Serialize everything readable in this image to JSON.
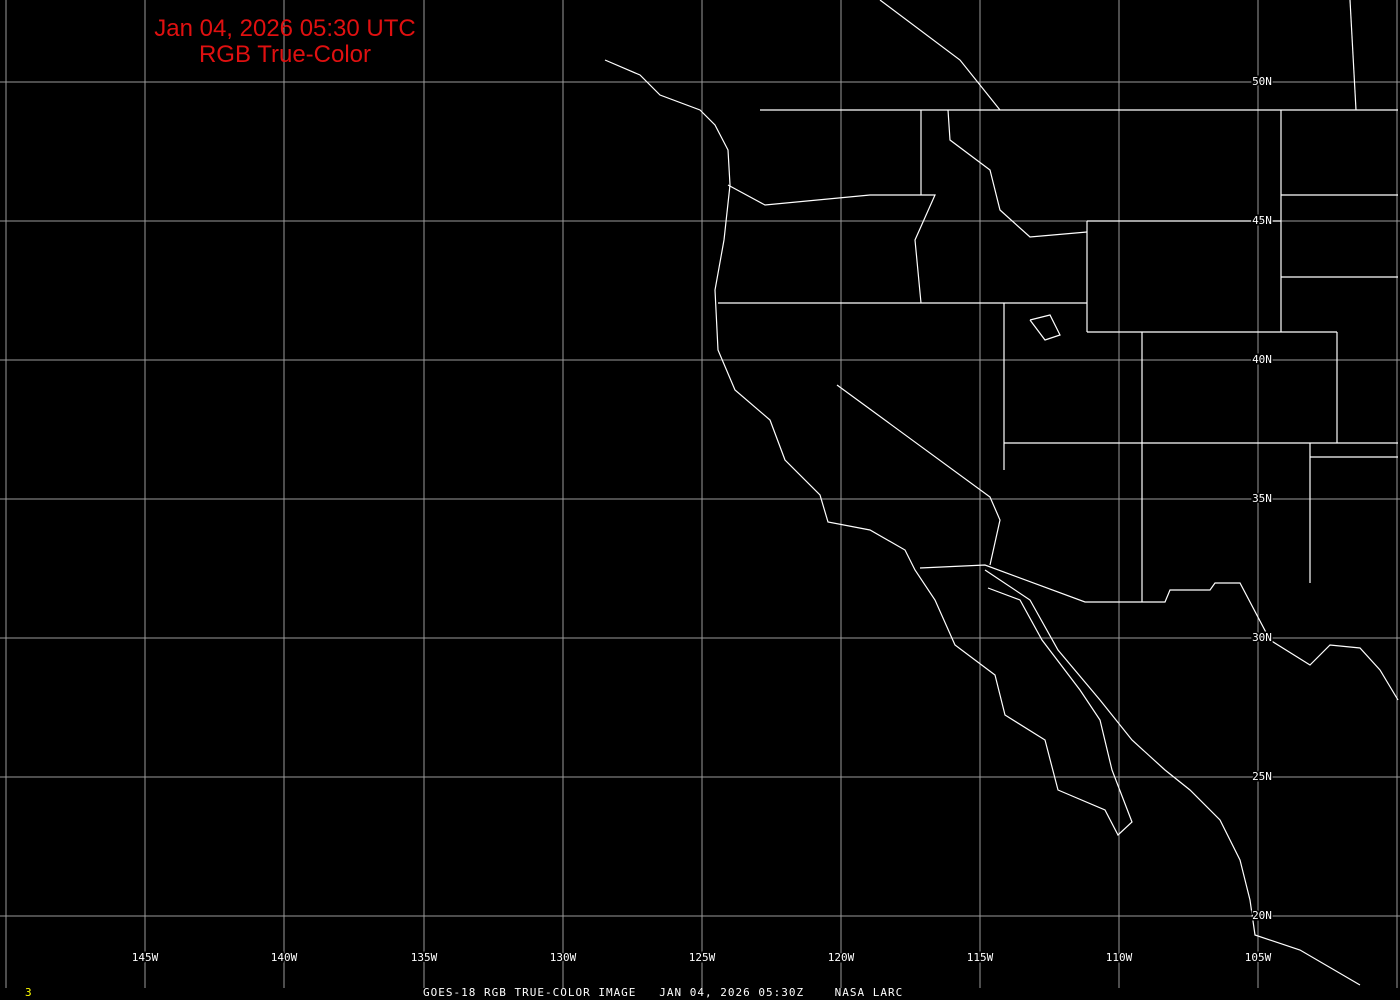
{
  "title": {
    "line1": "Jan 04, 2026 05:30 UTC",
    "line2": "RGB True-Color"
  },
  "footer": {
    "text": "GOES-18 RGB TRUE-COLOR IMAGE   JAN 04, 2026 05:30Z    NASA LARC",
    "frame_number": "3"
  },
  "colors": {
    "title": "#e01010",
    "grid": "#a0a0a0",
    "boundaries": "#ffffff",
    "frame_number": "#ffff00"
  },
  "longitude_labels": [
    "145W",
    "140W",
    "135W",
    "130W",
    "125W",
    "120W",
    "115W",
    "110W",
    "105W"
  ],
  "latitude_labels": [
    "50N",
    "45N",
    "40N",
    "35N",
    "30N",
    "25N",
    "20N"
  ]
}
